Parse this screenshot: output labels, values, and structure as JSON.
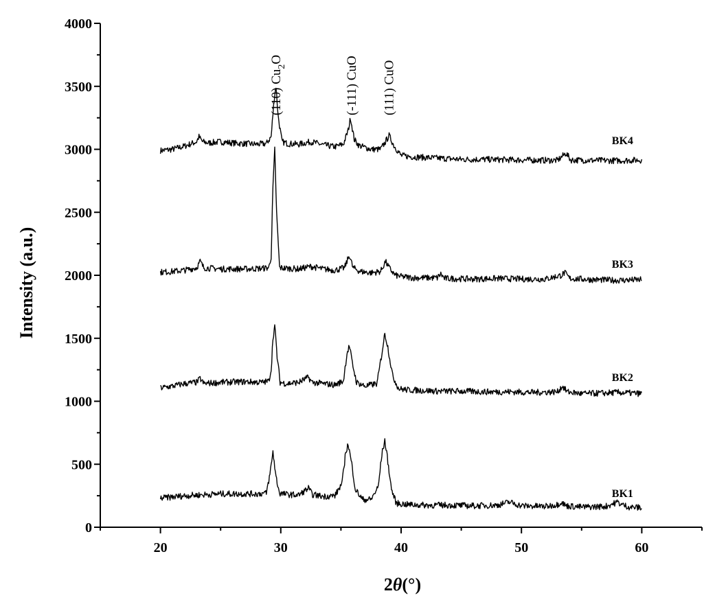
{
  "chart_data": {
    "type": "line",
    "title": "",
    "xlabel_main": "2",
    "xlabel_theta": "θ",
    "xlabel_unit": "(°)",
    "ylabel": "Intensity (a.u.)",
    "xlim": [
      15,
      65
    ],
    "ylim": [
      0,
      4000
    ],
    "xticks": [
      20,
      30,
      40,
      50,
      60
    ],
    "yticks": [
      0,
      500,
      1000,
      1500,
      2000,
      2500,
      3000,
      3500,
      4000
    ],
    "grid": false,
    "legend": "none",
    "annotations": [
      {
        "text": "(110) Cu",
        "sub": "2",
        "tail": "O",
        "x": 29.6
      },
      {
        "text": "(-111) CuO",
        "x": 35.9
      },
      {
        "text": "(111) CuO",
        "x": 39.0
      }
    ],
    "series": [
      {
        "name": "BK4",
        "label_at": [
          58.4,
          3040
        ],
        "points": [
          [
            20,
            2990
          ],
          [
            21,
            3000
          ],
          [
            22,
            3025
          ],
          [
            23,
            3060
          ],
          [
            23.2,
            3100
          ],
          [
            23.5,
            3060
          ],
          [
            24,
            3050
          ],
          [
            25,
            3060
          ],
          [
            26,
            3050
          ],
          [
            27,
            3045
          ],
          [
            28,
            3040
          ],
          [
            28.8,
            3045
          ],
          [
            29.2,
            3100
          ],
          [
            29.45,
            3400
          ],
          [
            29.6,
            3500
          ],
          [
            29.8,
            3250
          ],
          [
            30.1,
            3060
          ],
          [
            30.6,
            3045
          ],
          [
            31.5,
            3040
          ],
          [
            32.5,
            3060
          ],
          [
            33.5,
            3035
          ],
          [
            34.5,
            3020
          ],
          [
            35.2,
            3040
          ],
          [
            35.6,
            3150
          ],
          [
            35.8,
            3250
          ],
          [
            36.1,
            3080
          ],
          [
            36.5,
            3030
          ],
          [
            37.5,
            3000
          ],
          [
            38.3,
            3000
          ],
          [
            38.7,
            3060
          ],
          [
            39.0,
            3110
          ],
          [
            39.4,
            3030
          ],
          [
            40,
            2950
          ],
          [
            41,
            2940
          ],
          [
            42,
            2935
          ],
          [
            43,
            2930
          ],
          [
            44,
            2925
          ],
          [
            45,
            2920
          ],
          [
            47,
            2920
          ],
          [
            50,
            2915
          ],
          [
            53,
            2912
          ],
          [
            53.7,
            2970
          ],
          [
            54.1,
            2915
          ],
          [
            56,
            2912
          ],
          [
            58,
            2910
          ],
          [
            60,
            2915
          ]
        ]
      },
      {
        "name": "BK3",
        "label_at": [
          58.4,
          2060
        ],
        "points": [
          [
            20,
            2025
          ],
          [
            21,
            2030
          ],
          [
            22,
            2040
          ],
          [
            23,
            2060
          ],
          [
            23.3,
            2110
          ],
          [
            23.6,
            2060
          ],
          [
            25,
            2050
          ],
          [
            27,
            2050
          ],
          [
            28.5,
            2055
          ],
          [
            29.0,
            2060
          ],
          [
            29.2,
            2150
          ],
          [
            29.35,
            2700
          ],
          [
            29.5,
            3000
          ],
          [
            29.65,
            2500
          ],
          [
            29.9,
            2060
          ],
          [
            30.5,
            2055
          ],
          [
            31.5,
            2050
          ],
          [
            32.5,
            2070
          ],
          [
            33.5,
            2050
          ],
          [
            34.5,
            2040
          ],
          [
            35.3,
            2060
          ],
          [
            35.7,
            2160
          ],
          [
            36.0,
            2060
          ],
          [
            36.6,
            2030
          ],
          [
            37.5,
            2020
          ],
          [
            38.3,
            2030
          ],
          [
            38.7,
            2110
          ],
          [
            39.0,
            2060
          ],
          [
            39.5,
            2000
          ],
          [
            40,
            1990
          ],
          [
            41,
            1980
          ],
          [
            43,
            1980
          ],
          [
            43.3,
            2010
          ],
          [
            43.6,
            1975
          ],
          [
            46,
            1970
          ],
          [
            48,
            1975
          ],
          [
            50,
            1970
          ],
          [
            52,
            1970
          ],
          [
            53.3,
            2000
          ],
          [
            53.6,
            2020
          ],
          [
            54.0,
            1975
          ],
          [
            56,
            1965
          ],
          [
            58,
            1960
          ],
          [
            60,
            1965
          ]
        ]
      },
      {
        "name": "BK2",
        "label_at": [
          58.4,
          1160
        ],
        "points": [
          [
            20,
            1105
          ],
          [
            21,
            1120
          ],
          [
            22,
            1140
          ],
          [
            23,
            1150
          ],
          [
            23.3,
            1180
          ],
          [
            23.6,
            1140
          ],
          [
            25,
            1150
          ],
          [
            27,
            1155
          ],
          [
            28.5,
            1150
          ],
          [
            29.0,
            1160
          ],
          [
            29.2,
            1250
          ],
          [
            29.35,
            1500
          ],
          [
            29.5,
            1600
          ],
          [
            29.7,
            1350
          ],
          [
            29.95,
            1150
          ],
          [
            30.5,
            1140
          ],
          [
            31.5,
            1150
          ],
          [
            32.3,
            1190
          ],
          [
            32.6,
            1150
          ],
          [
            33.5,
            1140
          ],
          [
            34.5,
            1130
          ],
          [
            35.2,
            1160
          ],
          [
            35.5,
            1380
          ],
          [
            35.7,
            1440
          ],
          [
            35.95,
            1300
          ],
          [
            36.3,
            1150
          ],
          [
            37.0,
            1120
          ],
          [
            38.0,
            1140
          ],
          [
            38.4,
            1380
          ],
          [
            38.65,
            1540
          ],
          [
            38.9,
            1430
          ],
          [
            39.3,
            1200
          ],
          [
            39.8,
            1100
          ],
          [
            40.5,
            1090
          ],
          [
            42,
            1085
          ],
          [
            43,
            1080
          ],
          [
            45,
            1080
          ],
          [
            47,
            1075
          ],
          [
            49,
            1075
          ],
          [
            51,
            1070
          ],
          [
            53,
            1075
          ],
          [
            53.4,
            1120
          ],
          [
            53.8,
            1075
          ],
          [
            55,
            1060
          ],
          [
            57,
            1065
          ],
          [
            58,
            1070
          ],
          [
            60,
            1060
          ]
        ]
      },
      {
        "name": "BK1",
        "label_at": [
          58.4,
          240
        ],
        "points": [
          [
            20,
            230
          ],
          [
            21,
            240
          ],
          [
            22,
            250
          ],
          [
            23,
            255
          ],
          [
            24,
            260
          ],
          [
            25,
            265
          ],
          [
            26,
            265
          ],
          [
            27,
            265
          ],
          [
            28,
            265
          ],
          [
            28.8,
            270
          ],
          [
            29.1,
            420
          ],
          [
            29.35,
            600
          ],
          [
            29.6,
            400
          ],
          [
            29.9,
            270
          ],
          [
            30.5,
            260
          ],
          [
            31.5,
            255
          ],
          [
            32.3,
            310
          ],
          [
            32.6,
            260
          ],
          [
            33.5,
            245
          ],
          [
            34.5,
            250
          ],
          [
            35.1,
            350
          ],
          [
            35.4,
            600
          ],
          [
            35.6,
            660
          ],
          [
            35.9,
            500
          ],
          [
            36.2,
            300
          ],
          [
            36.8,
            220
          ],
          [
            37.5,
            220
          ],
          [
            38.1,
            320
          ],
          [
            38.4,
            580
          ],
          [
            38.65,
            690
          ],
          [
            38.9,
            520
          ],
          [
            39.2,
            300
          ],
          [
            39.6,
            190
          ],
          [
            40.5,
            180
          ],
          [
            42,
            175
          ],
          [
            44,
            175
          ],
          [
            46,
            170
          ],
          [
            48,
            175
          ],
          [
            49,
            200
          ],
          [
            50,
            170
          ],
          [
            52,
            165
          ],
          [
            53,
            180
          ],
          [
            53.3,
            200
          ],
          [
            53.7,
            170
          ],
          [
            55,
            160
          ],
          [
            57,
            165
          ],
          [
            58,
            200
          ],
          [
            58.3,
            180
          ],
          [
            59,
            160
          ],
          [
            60,
            155
          ]
        ]
      }
    ]
  }
}
